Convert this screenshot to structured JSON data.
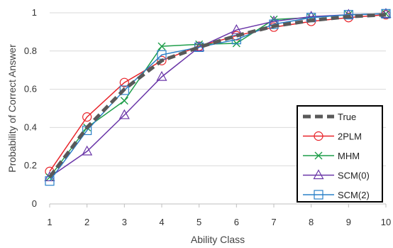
{
  "chart_data": {
    "type": "line",
    "xlabel": "Ability Class",
    "ylabel": "Probability of Correct Answer",
    "x": [
      1,
      2,
      3,
      4,
      5,
      6,
      7,
      8,
      9,
      10
    ],
    "xlim": [
      1,
      10
    ],
    "ylim": [
      0,
      1
    ],
    "xticks": [
      "1",
      "2",
      "3",
      "4",
      "5",
      "6",
      "7",
      "8",
      "9",
      "10"
    ],
    "yticks": [
      "0",
      "0.2",
      "0.4",
      "0.6",
      "0.8",
      "1"
    ],
    "grid": "horizontal",
    "legend_position": "bottom-right",
    "series": [
      {
        "name": "True",
        "color": "#595959",
        "style": "dashed",
        "marker": "none",
        "values": [
          0.14,
          0.4,
          0.6,
          0.75,
          0.82,
          0.88,
          0.93,
          0.96,
          0.98,
          0.99
        ]
      },
      {
        "name": "2PLM",
        "color": "#e8242a",
        "style": "solid",
        "marker": "circle",
        "values": [
          0.17,
          0.455,
          0.635,
          0.75,
          0.825,
          0.88,
          0.925,
          0.955,
          0.975,
          0.99
        ]
      },
      {
        "name": "MHM",
        "color": "#1f9e4a",
        "style": "solid",
        "marker": "x",
        "values": [
          0.14,
          0.4,
          0.54,
          0.825,
          0.835,
          0.84,
          0.965,
          0.975,
          0.99,
          0.995
        ]
      },
      {
        "name": "SCM(0)",
        "color": "#6a36a8",
        "style": "solid",
        "marker": "triangle",
        "values": [
          0.14,
          0.275,
          0.465,
          0.665,
          0.82,
          0.91,
          0.955,
          0.98,
          0.99,
          0.995
        ]
      },
      {
        "name": "SCM(2)",
        "color": "#2a80c8",
        "style": "solid",
        "marker": "square",
        "values": [
          0.12,
          0.385,
          0.595,
          0.78,
          0.82,
          0.86,
          0.94,
          0.975,
          0.99,
          0.995
        ]
      }
    ]
  }
}
